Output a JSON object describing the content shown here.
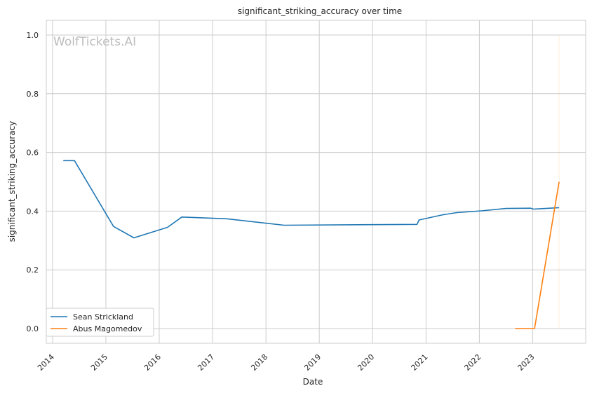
{
  "chart_data": {
    "type": "line",
    "title": "significant_striking_accuracy over time",
    "xlabel": "Date",
    "ylabel": "significant_striking_accuracy",
    "watermark": "WolfTickets.AI",
    "x_ticks": [
      "2014",
      "2015",
      "2016",
      "2017",
      "2018",
      "2019",
      "2020",
      "2021",
      "2022",
      "2023"
    ],
    "y_ticks": [
      "0.0",
      "0.2",
      "0.4",
      "0.6",
      "0.8",
      "1.0"
    ],
    "xlim": [
      "2013-11-19",
      "2023-12-30"
    ],
    "ylim": [
      -0.05,
      1.05
    ],
    "grid": true,
    "legend_position": "lower-left",
    "series": [
      {
        "name": "Sean Strickland",
        "color": "#1f77b4",
        "points": [
          [
            "2014-03-15",
            0.572
          ],
          [
            "2014-05-31",
            0.572
          ],
          [
            "2015-02-22",
            0.348
          ],
          [
            "2015-07-12",
            0.309
          ],
          [
            "2016-02-27",
            0.345
          ],
          [
            "2016-06-04",
            0.38
          ],
          [
            "2017-04-08",
            0.374
          ],
          [
            "2018-05-05",
            0.352
          ],
          [
            "2020-10-31",
            0.355
          ],
          [
            "2020-11-14",
            0.37
          ],
          [
            "2021-05-01",
            0.388
          ],
          [
            "2021-07-31",
            0.395
          ],
          [
            "2022-01-15",
            0.401
          ],
          [
            "2022-07-02",
            0.409
          ],
          [
            "2022-12-17",
            0.41
          ],
          [
            "2023-01-07",
            0.407
          ],
          [
            "2023-07-01",
            0.412
          ]
        ]
      },
      {
        "name": "Abus Magomedov",
        "color": "#ff7f0e",
        "points": [
          [
            "2022-09-03",
            0.0
          ],
          [
            "2023-01-14",
            0.0
          ],
          [
            "2023-07-01",
            0.5
          ]
        ]
      }
    ]
  }
}
